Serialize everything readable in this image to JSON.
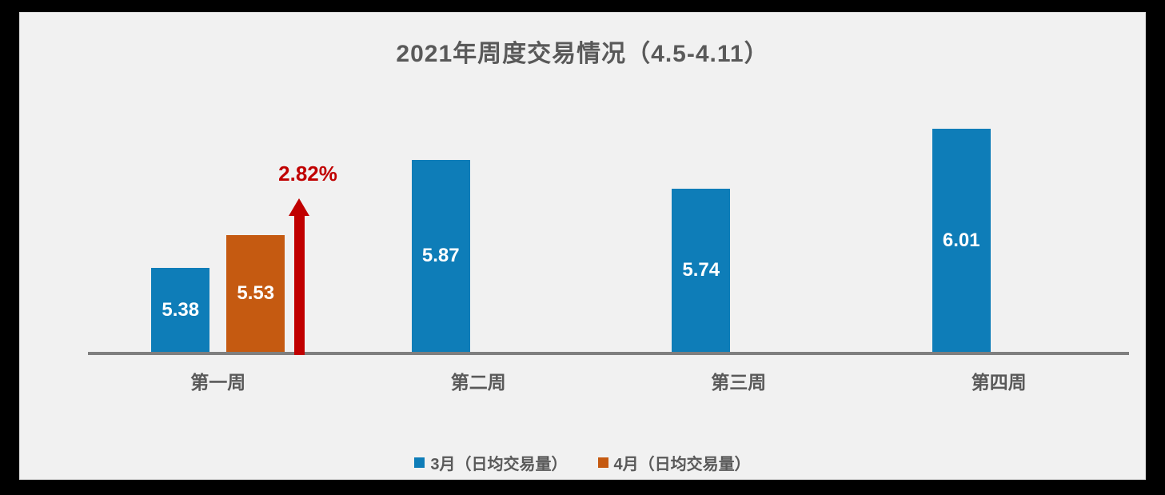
{
  "page": {
    "background": "#000000",
    "slide_background": "#F1F1F1"
  },
  "title": {
    "text": "2021年周度交易情况（4.5-4.11）",
    "color": "#595959"
  },
  "chart_data": {
    "type": "bar",
    "title": "2021年周度交易情况（4.5-4.11）",
    "categories": [
      "第一周",
      "第二周",
      "第三周",
      "第四周"
    ],
    "series": [
      {
        "name": "3月（日均交易量）",
        "color": "#0E7DB8",
        "values": [
          5.38,
          5.87,
          5.74,
          6.01
        ],
        "labels": [
          "5.38",
          "5.87",
          "5.74",
          "6.01"
        ]
      },
      {
        "name": "4月（日均交易量）",
        "color": "#C55A11",
        "values": [
          5.53,
          null,
          null,
          null
        ],
        "labels": [
          "5.53",
          null,
          null,
          null
        ]
      }
    ],
    "data_label_color": "#FFFFFF",
    "annotation": {
      "text": "2.82%",
      "color": "#C00000",
      "shape": "up-arrow",
      "category": "第一周"
    },
    "xlabel": "",
    "ylabel": "",
    "ylim": [
      5.0,
      6.2
    ],
    "axis": {
      "baseline_color": "#7F7F7F",
      "category_label_color": "#595959",
      "grid": false,
      "y_axis_visible": false
    },
    "legend": {
      "position": "bottom",
      "label_color": "#595959"
    }
  }
}
